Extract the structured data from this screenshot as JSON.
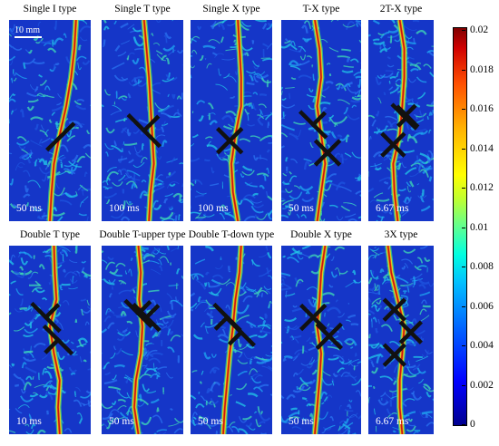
{
  "panels": [
    {
      "title": "Single I type",
      "time": "50 ms",
      "scale": "10 mm",
      "marker": "I"
    },
    {
      "title": "Single T type",
      "time": "100 ms",
      "marker": "T"
    },
    {
      "title": "Single X type",
      "time": "100 ms",
      "marker": "X"
    },
    {
      "title": "T-X type",
      "time": "50 ms",
      "marker": "TX"
    },
    {
      "title": "2T-X type",
      "time": "6.67 ms",
      "marker": "2TX"
    },
    {
      "title": "Double T type",
      "time": "10 ms",
      "marker": "DT"
    },
    {
      "title": "Double T-upper type",
      "time": "50 ms",
      "marker": "DTU"
    },
    {
      "title": "Double T-down type",
      "time": "50 ms",
      "marker": "DTD"
    },
    {
      "title": "Double X type",
      "time": "50 ms",
      "marker": "DX"
    },
    {
      "title": "3X type",
      "time": "6.67 ms",
      "marker": "3X"
    }
  ],
  "colorbar": {
    "ticks": [
      "0.02",
      "0.018",
      "0.016",
      "0.014",
      "0.012",
      "0.01",
      "0.008",
      "0.006",
      "0.004",
      "0.002",
      "0"
    ],
    "colors": [
      "#00008f",
      "#0000ff",
      "#00c0ff",
      "#60ff90",
      "#ffff00",
      "#ff5000",
      "#800000"
    ]
  }
}
